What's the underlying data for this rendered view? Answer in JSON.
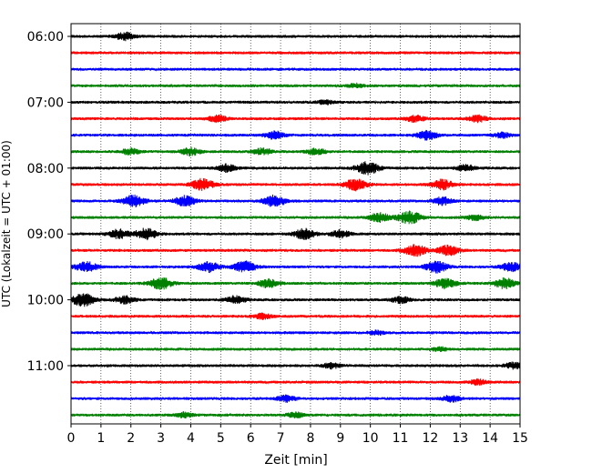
{
  "chart_data": {
    "type": "line",
    "title": "",
    "xlabel": "Zeit  [min]",
    "ylabel": "UTC (Lokalzeit = UTC + 01:00)",
    "xlim": [
      0,
      15
    ],
    "x_ticks": [
      0,
      1,
      2,
      3,
      4,
      5,
      6,
      7,
      8,
      9,
      10,
      11,
      12,
      13,
      14,
      15
    ],
    "y_tick_labels": [
      "06:00",
      "07:00",
      "08:00",
      "09:00",
      "10:00",
      "11:00"
    ],
    "grid": "vertical-dotted",
    "trace_interval_min": 15,
    "start_time": "06:00",
    "trace_colors": [
      "#000000",
      "#ff0000",
      "#0000ff",
      "#008000"
    ],
    "traces": [
      {
        "time": "06:00",
        "bursts": [
          [
            1.8,
            0.6
          ]
        ]
      },
      {
        "time": "06:15",
        "bursts": []
      },
      {
        "time": "06:30",
        "bursts": []
      },
      {
        "time": "06:45",
        "bursts": [
          [
            9.5,
            0.3
          ]
        ]
      },
      {
        "time": "07:00",
        "bursts": [
          [
            8.5,
            0.3
          ]
        ]
      },
      {
        "time": "07:15",
        "bursts": [
          [
            4.9,
            0.5
          ],
          [
            11.5,
            0.5
          ],
          [
            13.6,
            0.5
          ]
        ]
      },
      {
        "time": "07:30",
        "bursts": [
          [
            6.8,
            0.6
          ],
          [
            11.9,
            0.7
          ],
          [
            14.4,
            0.4
          ]
        ]
      },
      {
        "time": "07:45",
        "bursts": [
          [
            2.0,
            0.5
          ],
          [
            4.0,
            0.6
          ],
          [
            6.4,
            0.5
          ],
          [
            8.2,
            0.5
          ]
        ]
      },
      {
        "time": "08:00",
        "bursts": [
          [
            5.2,
            0.6
          ],
          [
            9.9,
            1.0
          ],
          [
            13.2,
            0.5
          ]
        ]
      },
      {
        "time": "08:15",
        "bursts": [
          [
            4.4,
            0.9
          ],
          [
            9.5,
            0.9
          ],
          [
            12.4,
            0.8
          ]
        ]
      },
      {
        "time": "08:30",
        "bursts": [
          [
            2.1,
            0.9
          ],
          [
            3.8,
            0.8
          ],
          [
            6.8,
            0.9
          ],
          [
            12.4,
            0.6
          ]
        ]
      },
      {
        "time": "08:45",
        "bursts": [
          [
            10.3,
            0.7
          ],
          [
            11.3,
            1.0
          ],
          [
            13.5,
            0.4
          ]
        ]
      },
      {
        "time": "09:00",
        "bursts": [
          [
            1.6,
            0.7
          ],
          [
            2.5,
            0.9
          ],
          [
            7.8,
            0.8
          ],
          [
            9.0,
            0.6
          ]
        ]
      },
      {
        "time": "09:15",
        "bursts": [
          [
            11.5,
            0.9
          ],
          [
            12.6,
            0.8
          ]
        ]
      },
      {
        "time": "09:30",
        "bursts": [
          [
            0.5,
            0.8
          ],
          [
            4.6,
            0.8
          ],
          [
            5.8,
            0.9
          ],
          [
            12.2,
            0.9
          ],
          [
            14.7,
            0.7
          ]
        ]
      },
      {
        "time": "09:45",
        "bursts": [
          [
            3.0,
            0.9
          ],
          [
            6.6,
            0.7
          ],
          [
            12.5,
            0.8
          ],
          [
            14.5,
            0.8
          ]
        ]
      },
      {
        "time": "10:00",
        "bursts": [
          [
            0.4,
            1.0
          ],
          [
            1.8,
            0.6
          ],
          [
            5.5,
            0.6
          ],
          [
            11.0,
            0.5
          ]
        ]
      },
      {
        "time": "10:15",
        "bursts": [
          [
            6.4,
            0.4
          ]
        ]
      },
      {
        "time": "10:30",
        "bursts": [
          [
            10.2,
            0.3
          ]
        ]
      },
      {
        "time": "10:45",
        "bursts": [
          [
            12.3,
            0.3
          ]
        ]
      },
      {
        "time": "11:00",
        "bursts": [
          [
            8.7,
            0.4
          ],
          [
            14.8,
            0.5
          ]
        ]
      },
      {
        "time": "11:15",
        "bursts": [
          [
            13.6,
            0.4
          ]
        ]
      },
      {
        "time": "11:30",
        "bursts": [
          [
            7.2,
            0.5
          ],
          [
            12.7,
            0.5
          ]
        ]
      },
      {
        "time": "11:45",
        "bursts": [
          [
            3.8,
            0.4
          ],
          [
            7.5,
            0.4
          ]
        ]
      }
    ]
  }
}
